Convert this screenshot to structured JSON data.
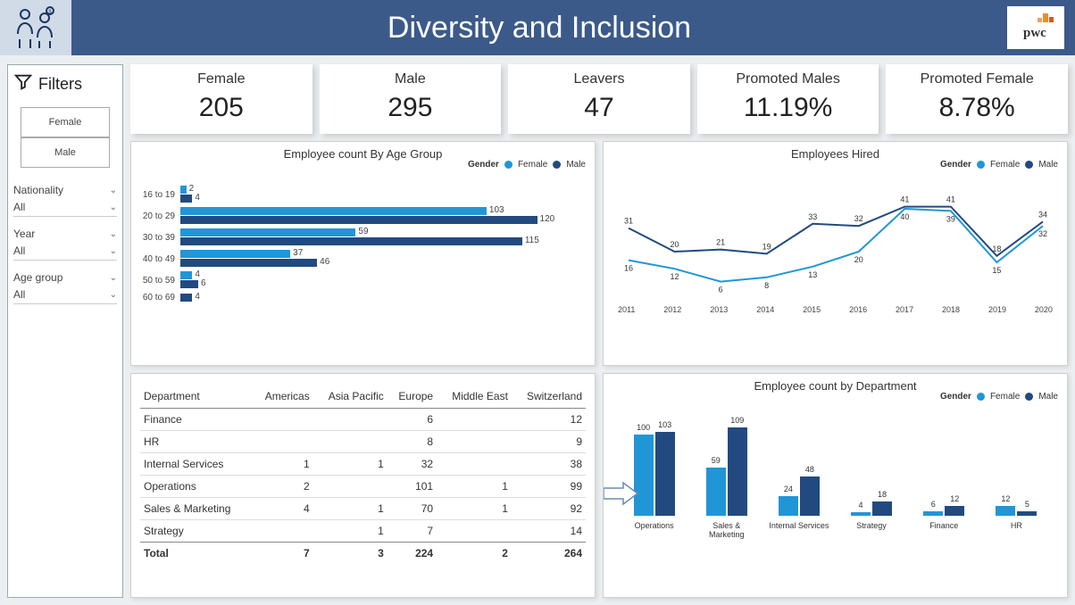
{
  "header": {
    "title": "Diversity and Inclusion",
    "logo_text": "pwc"
  },
  "sidebar": {
    "title": "Filters",
    "gender_buttons": [
      "Female",
      "Male"
    ],
    "filters": [
      {
        "label": "Nationality",
        "value": "All"
      },
      {
        "label": "Year",
        "value": "All"
      },
      {
        "label": "Age group",
        "value": "All"
      }
    ]
  },
  "kpis": [
    {
      "label": "Female",
      "value": "205"
    },
    {
      "label": "Male",
      "value": "295"
    },
    {
      "label": "Leavers",
      "value": "47"
    },
    {
      "label": "Promoted Males",
      "value": "11.19%"
    },
    {
      "label": "Promoted Female",
      "value": "8.78%"
    }
  ],
  "colors": {
    "female": "#2196d6",
    "male": "#224a80",
    "card_bg": "#ffffff",
    "page_bg": "#eceff1"
  },
  "legend_label": "Gender",
  "legend_female": "Female",
  "legend_male": "Male",
  "age_chart": {
    "title": "Employee count By Age Group",
    "max": 120,
    "rows": [
      {
        "label": "16 to 19",
        "female": 2,
        "male": 4
      },
      {
        "label": "20 to 29",
        "female": 103,
        "male": 120
      },
      {
        "label": "30 to 39",
        "female": 59,
        "male": 115
      },
      {
        "label": "40 to 49",
        "female": 37,
        "male": 46
      },
      {
        "label": "50 to 59",
        "female": 4,
        "male": 6
      },
      {
        "label": "60 to 69",
        "female": 0,
        "male": 4
      }
    ]
  },
  "line_chart": {
    "title": "Employees Hired",
    "years": [
      "2011",
      "2012",
      "2013",
      "2014",
      "2015",
      "2016",
      "2017",
      "2018",
      "2019",
      "2020"
    ],
    "female": [
      16,
      12,
      6,
      8,
      13,
      20,
      40,
      39,
      15,
      32
    ],
    "male": [
      31,
      20,
      21,
      19,
      33,
      32,
      41,
      41,
      18,
      34
    ],
    "ymax": 45
  },
  "table": {
    "columns": [
      "Department",
      "Americas",
      "Asia Pacific",
      "Europe",
      "Middle East",
      "Switzerland"
    ],
    "rows": [
      [
        "Finance",
        "",
        "",
        "6",
        "",
        "12"
      ],
      [
        "HR",
        "",
        "",
        "8",
        "",
        "9"
      ],
      [
        "Internal Services",
        "1",
        "1",
        "32",
        "",
        "38"
      ],
      [
        "Operations",
        "2",
        "",
        "101",
        "1",
        "99"
      ],
      [
        "Sales & Marketing",
        "4",
        "1",
        "70",
        "1",
        "92"
      ],
      [
        "Strategy",
        "",
        "1",
        "7",
        "",
        "14"
      ]
    ],
    "total": [
      "Total",
      "7",
      "3",
      "224",
      "2",
      "264"
    ]
  },
  "dept_chart": {
    "title": "Employee count by Department",
    "max": 110,
    "items": [
      {
        "name": "Operations",
        "female": 100,
        "male": 103
      },
      {
        "name": "Sales & Marketing",
        "female": 59,
        "male": 109
      },
      {
        "name": "Internal Services",
        "female": 24,
        "male": 48
      },
      {
        "name": "Strategy",
        "female": 4,
        "male": 18
      },
      {
        "name": "Finance",
        "female": 6,
        "male": 12
      },
      {
        "name": "HR",
        "female": 12,
        "male": 5
      }
    ]
  }
}
